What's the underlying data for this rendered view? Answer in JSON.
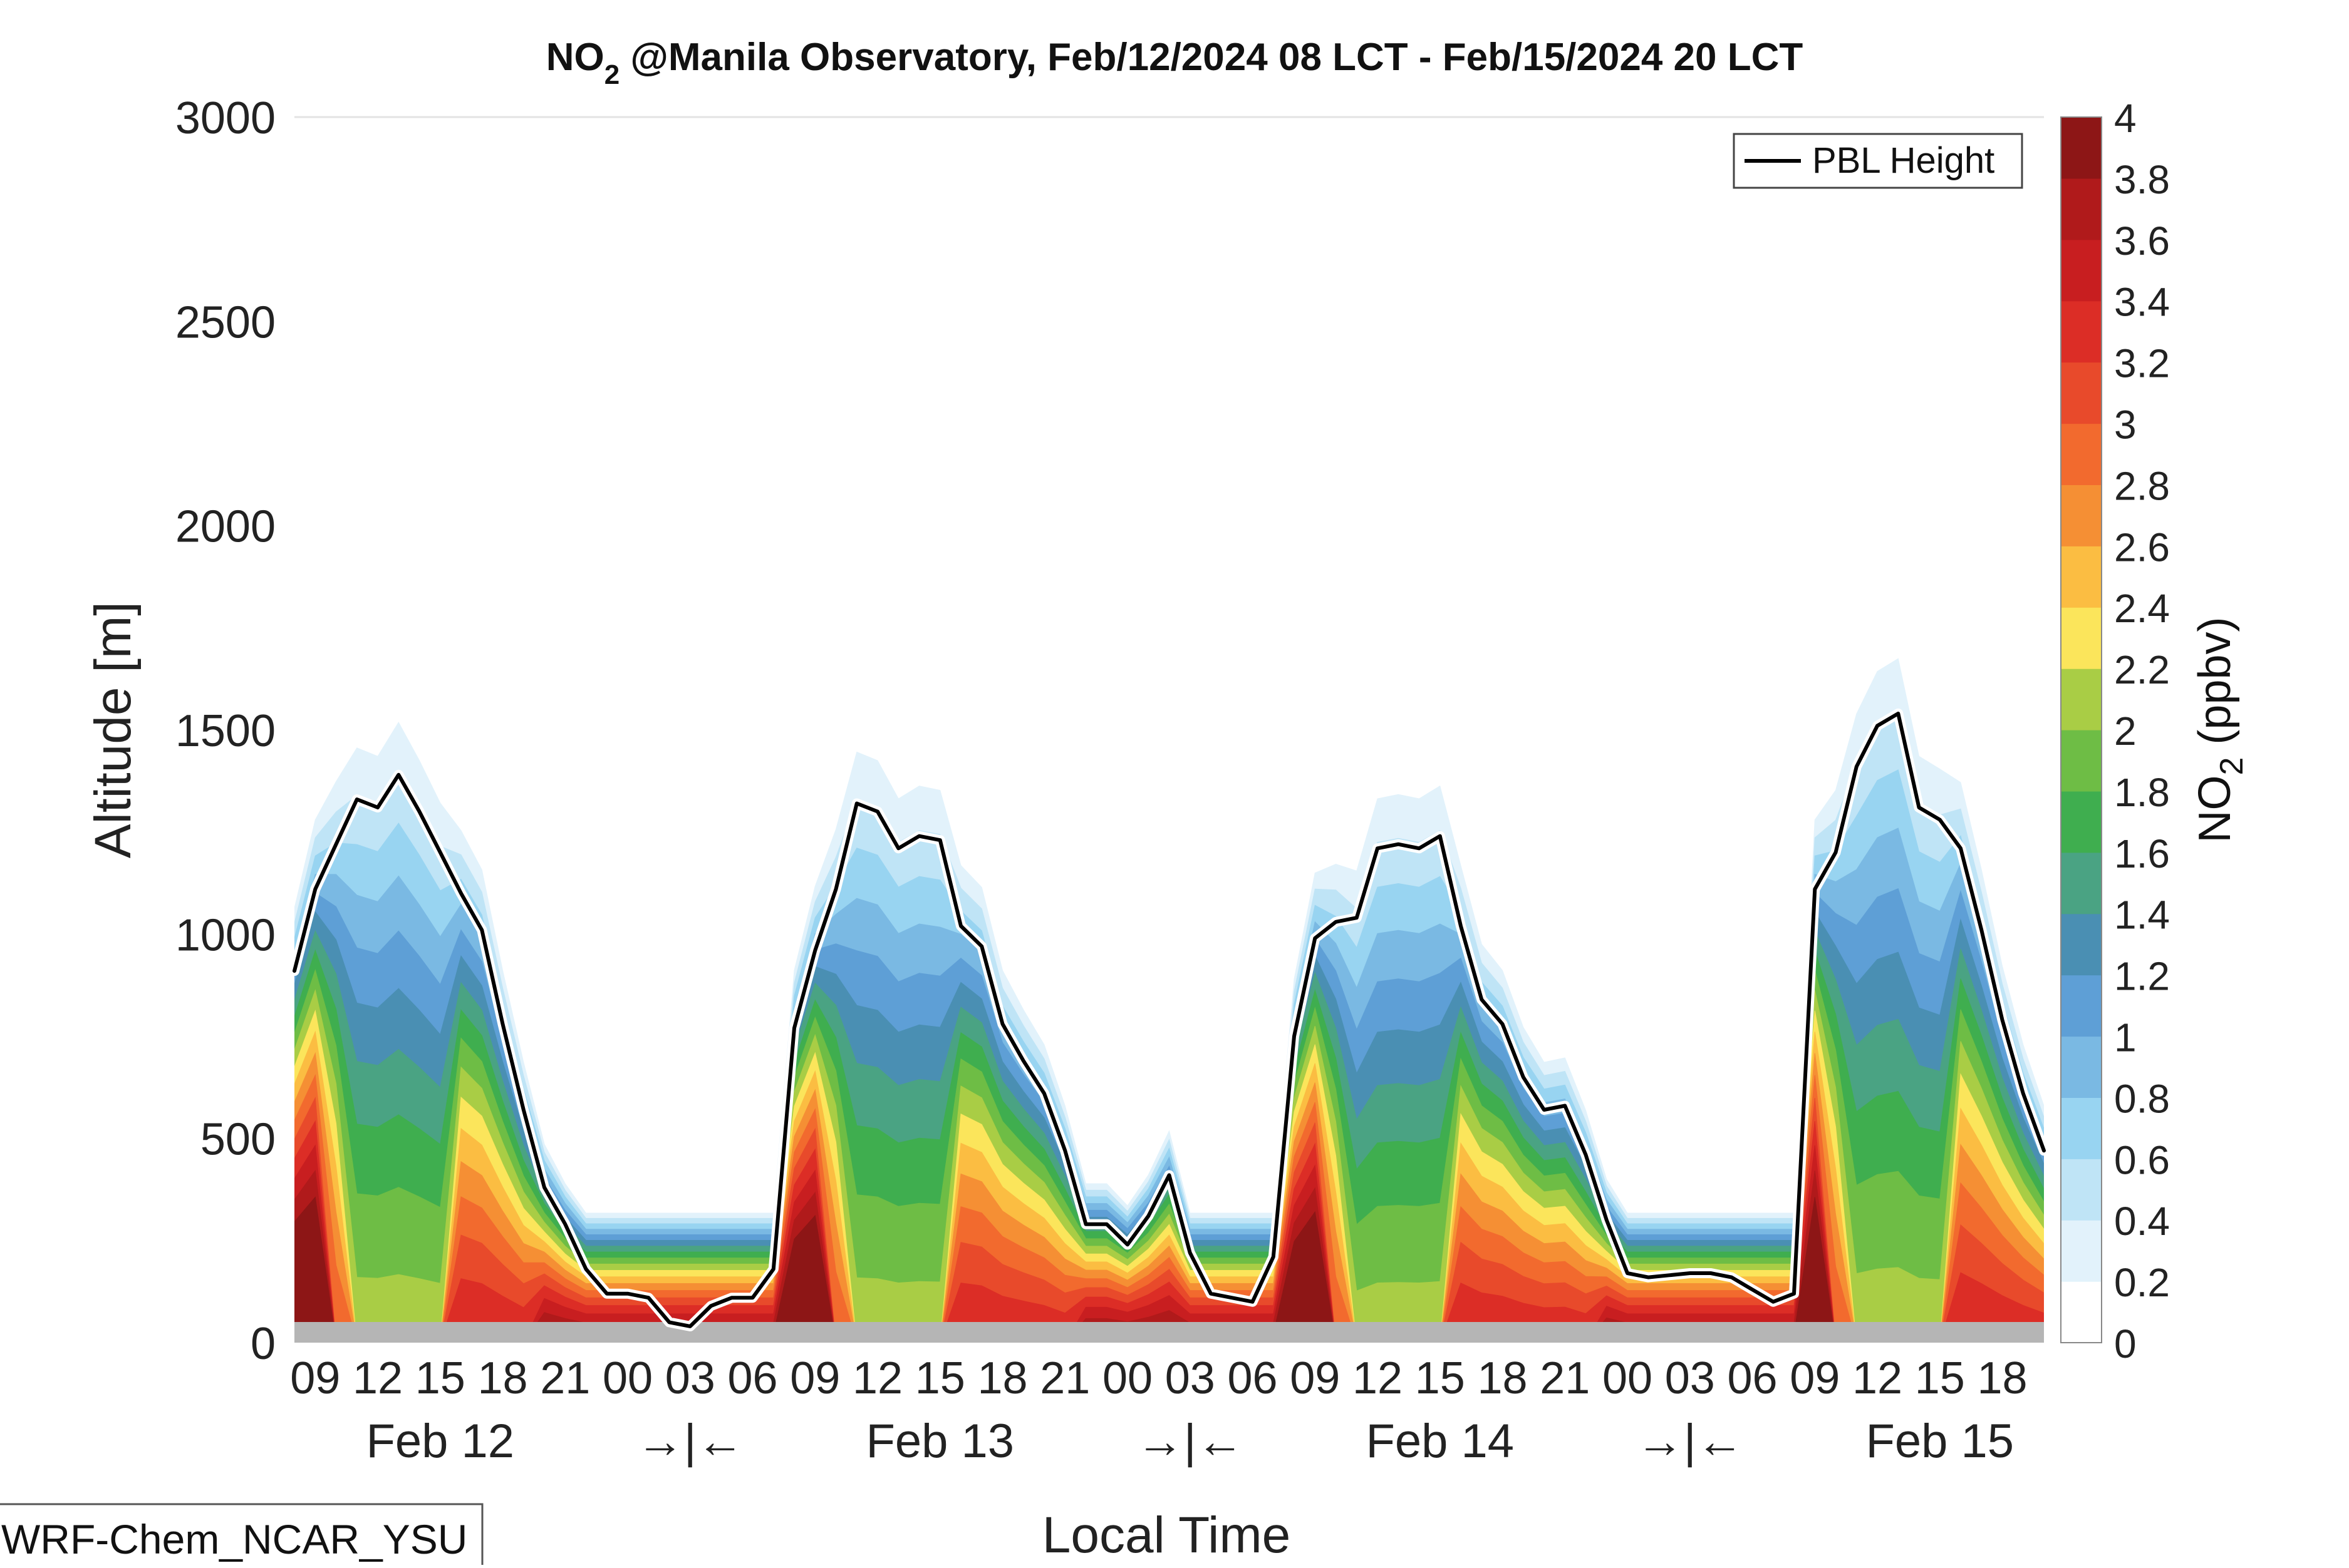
{
  "figure": {
    "title_main": "NO",
    "title_sub": "2",
    "title_rest": " @Manila Observatory, Feb/12/2024 08 LCT - Feb/15/2024 20 LCT",
    "watermark": "WRF-Chem_NCAR_YSU"
  },
  "chart_data": {
    "type": "heatmap",
    "title": "NO2 @Manila Observatory, Feb/12/2024 08 LCT - Feb/15/2024 20 LCT",
    "xlabel": "Local Time",
    "ylabel": "Altitude [m]",
    "ylim": [
      0,
      3000
    ],
    "y_ticks": [
      0,
      500,
      1000,
      1500,
      2000,
      2500,
      3000
    ],
    "x_range_hours": [
      8,
      92
    ],
    "x_hour_tick_labels": [
      "09",
      "12",
      "15",
      "18",
      "21",
      "00",
      "03",
      "06",
      "09",
      "12",
      "15",
      "18",
      "21",
      "00",
      "03",
      "06",
      "09",
      "12",
      "15",
      "18",
      "21",
      "00",
      "03",
      "06",
      "09",
      "12",
      "15",
      "18"
    ],
    "x_day_labels": [
      "Feb 12",
      "→|←",
      "Feb 13",
      "→|←",
      "Feb 14",
      "→|←",
      "Feb 15"
    ],
    "colorbar": {
      "label_main": "NO",
      "label_sub": "2",
      "label_rest": " (ppbv)",
      "ticks": [
        "0",
        "0.2",
        "0.4",
        "0.6",
        "0.8",
        "1",
        "1.2",
        "1.4",
        "1.6",
        "1.8",
        "2",
        "2.2",
        "2.4",
        "2.6",
        "2.8",
        "3",
        "3.2",
        "3.4",
        "3.6",
        "3.8",
        "4"
      ],
      "colors": [
        "#ffffff",
        "#e2f2fb",
        "#bfe4f6",
        "#98d4f1",
        "#7ab9e3",
        "#5e9fd6",
        "#4a8fb3",
        "#4aa383",
        "#3fae4f",
        "#6ebd45",
        "#a9cd45",
        "#fbe55b",
        "#fbbd42",
        "#f58f34",
        "#f26a2e",
        "#e84a2b",
        "#dc2d26",
        "#c81e20",
        "#b01a1b",
        "#8d1616"
      ]
    },
    "legend": {
      "entries": [
        "PBL Height"
      ],
      "position": "top-right"
    },
    "grid": false,
    "series": [
      {
        "name": "PBL Height",
        "hours": [
          8,
          9,
          10,
          11,
          12,
          13,
          14,
          15,
          16,
          17,
          18,
          19,
          20,
          21,
          22,
          23,
          24,
          25,
          26,
          27,
          28,
          29,
          30,
          31,
          32,
          33,
          34,
          35,
          36,
          37,
          38,
          39,
          40,
          41,
          42,
          43,
          44,
          45,
          46,
          47,
          48,
          49,
          50,
          51,
          52,
          53,
          54,
          55,
          56,
          57,
          58,
          59,
          60,
          61,
          62,
          63,
          64,
          65,
          66,
          67,
          68,
          69,
          70,
          71,
          72,
          73,
          74,
          75,
          76,
          77,
          78,
          79,
          80,
          81,
          82,
          83,
          84,
          85,
          86,
          87,
          88,
          89,
          90,
          91,
          92
        ],
        "values": [
          910,
          1110,
          1220,
          1330,
          1310,
          1390,
          1300,
          1200,
          1100,
          1010,
          780,
          570,
          380,
          290,
          180,
          120,
          120,
          110,
          50,
          40,
          90,
          110,
          110,
          180,
          770,
          960,
          1110,
          1320,
          1300,
          1210,
          1240,
          1230,
          1020,
          970,
          780,
          690,
          610,
          470,
          290,
          290,
          240,
          310,
          410,
          220,
          120,
          110,
          100,
          210,
          750,
          990,
          1030,
          1040,
          1210,
          1220,
          1210,
          1240,
          1020,
          840,
          780,
          650,
          570,
          580,
          460,
          300,
          170,
          160,
          165,
          170,
          170,
          160,
          130,
          100,
          120,
          1110,
          1200,
          1410,
          1510,
          1540,
          1310,
          1280,
          1210,
          1010,
          790,
          610,
          470
        ]
      }
    ]
  }
}
